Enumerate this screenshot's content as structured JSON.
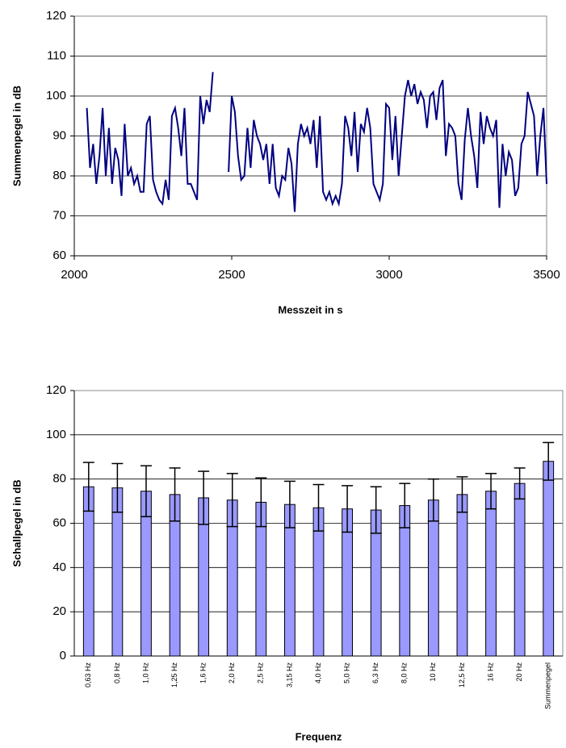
{
  "chart_data": [
    {
      "type": "line",
      "xlabel": "Messzeit in s",
      "ylabel": "Summenpegel in dB",
      "xlim": [
        2000,
        3500
      ],
      "xticks": [
        2000,
        2500,
        3000,
        3500
      ],
      "ylim": [
        60,
        120
      ],
      "yticks": [
        60,
        70,
        80,
        90,
        100,
        110,
        120
      ],
      "grid": true,
      "x": [
        2040,
        2050,
        2060,
        2070,
        2080,
        2090,
        2100,
        2110,
        2120,
        2130,
        2140,
        2150,
        2160,
        2170,
        2180,
        2190,
        2200,
        2210,
        2220,
        2230,
        2240,
        2250,
        2260,
        2270,
        2280,
        2290,
        2300,
        2310,
        2320,
        2330,
        2340,
        2350,
        2360,
        2370,
        2380,
        2390,
        2400,
        2410,
        2420,
        2430,
        2440,
        2450,
        2460,
        2470,
        2480,
        2490,
        2500,
        2510,
        2520,
        2530,
        2540,
        2550,
        2560,
        2570,
        2580,
        2590,
        2600,
        2610,
        2620,
        2630,
        2640,
        2650,
        2660,
        2670,
        2680,
        2690,
        2700,
        2710,
        2720,
        2730,
        2740,
        2750,
        2760,
        2770,
        2780,
        2790,
        2800,
        2810,
        2820,
        2830,
        2840,
        2850,
        2860,
        2870,
        2880,
        2890,
        2900,
        2910,
        2920,
        2930,
        2940,
        2950,
        2960,
        2970,
        2980,
        2990,
        3000,
        3010,
        3020,
        3030,
        3040,
        3050,
        3060,
        3070,
        3080,
        3090,
        3100,
        3110,
        3120,
        3130,
        3140,
        3150,
        3160,
        3170,
        3180,
        3190,
        3200,
        3210,
        3220,
        3230,
        3240,
        3250,
        3260,
        3270,
        3280,
        3290,
        3300,
        3310,
        3320,
        3330,
        3340,
        3350,
        3360,
        3370,
        3380,
        3390,
        3400,
        3410,
        3420,
        3430,
        3440,
        3450,
        3460,
        3470,
        3480,
        3490,
        3500
      ],
      "series": [
        {
          "color": "#000080",
          "values": [
            97,
            82,
            88,
            78,
            85,
            97,
            80,
            92,
            78,
            87,
            84,
            75,
            93,
            80,
            82,
            78,
            80,
            76,
            76,
            93,
            95,
            79,
            76,
            74,
            73,
            79,
            74,
            95,
            97,
            92,
            85,
            97,
            78,
            78,
            76,
            74,
            100,
            93,
            99,
            96,
            106,
            null,
            null,
            null,
            null,
            81,
            100,
            96,
            85,
            79,
            80,
            92,
            82,
            94,
            90,
            88,
            84,
            88,
            78,
            88,
            77,
            75,
            80,
            79,
            87,
            83,
            71,
            88,
            93,
            90,
            92,
            88,
            94,
            82,
            95,
            76,
            74,
            76,
            73,
            75,
            73,
            78,
            95,
            92,
            85,
            96,
            81,
            93,
            91,
            97,
            92,
            78,
            76,
            74,
            78,
            98,
            97,
            84,
            95,
            80,
            90,
            100,
            104,
            100,
            103,
            98,
            101,
            99,
            92,
            100,
            101,
            94,
            102,
            104,
            85,
            93,
            92,
            90,
            78,
            74,
            89,
            97,
            90,
            85,
            77,
            96,
            88,
            95,
            92,
            90,
            94,
            72,
            88,
            80,
            86,
            84,
            75,
            77,
            88,
            90,
            101,
            98,
            95,
            80,
            90,
            97,
            78
          ]
        }
      ]
    },
    {
      "type": "bar",
      "xlabel": "Frequenz",
      "ylabel": "Schallpegel in dB",
      "ylim": [
        0,
        120
      ],
      "yticks": [
        0,
        20,
        40,
        60,
        80,
        100,
        120
      ],
      "grid": true,
      "color": "#9999ff",
      "categories": [
        "0,63 Hz",
        "0,8 Hz",
        "1,0 Hz",
        "1,25 Hz",
        "1,6 Hz",
        "2,0 Hz",
        "2,5 Hz",
        "3,15 Hz",
        "4,0 Hz",
        "5,0 Hz",
        "6,3 Hz",
        "8,0 Hz",
        "10 Hz",
        "12,5 Hz",
        "16 Hz",
        "20 Hz",
        "Summenpegel"
      ],
      "values": [
        76.5,
        76,
        74.5,
        73,
        71.5,
        70.5,
        69.5,
        68.5,
        67,
        66.5,
        66,
        68,
        70.5,
        73,
        74.5,
        78,
        88
      ],
      "errors": [
        11,
        11,
        11.5,
        12,
        12,
        12,
        11,
        10.5,
        10.5,
        10.5,
        10.5,
        10,
        9.5,
        8,
        8,
        7,
        8.5
      ]
    }
  ]
}
